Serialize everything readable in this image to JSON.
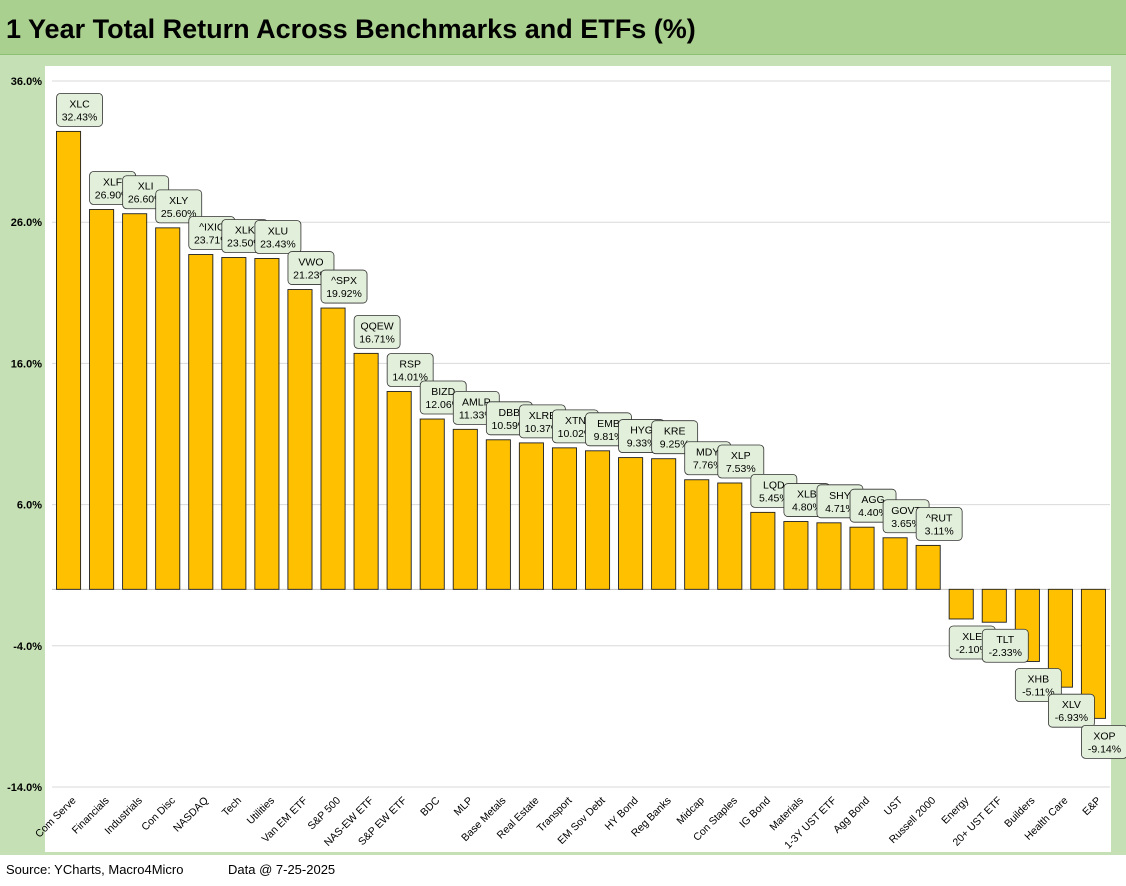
{
  "title": "1 Year Total Return Across Benchmarks and ETFs (%)",
  "footer": {
    "source": "Source: YCharts, Macro4Micro",
    "date": "Data @ 7-25-2025"
  },
  "colors": {
    "bar": "#ffc000",
    "frame": "#c5e0b4",
    "title_bar": "#a9d08e",
    "label_box": "#e2efda"
  },
  "chart_data": {
    "type": "bar",
    "title": "1 Year Total Return Across Benchmarks and ETFs (%)",
    "xlabel": "",
    "ylabel": "",
    "ylim": [
      -14,
      36
    ],
    "yticks": [
      -14,
      -4,
      6,
      16,
      26,
      36
    ],
    "ytick_labels": [
      "-14.0%",
      "-4.0%",
      "6.0%",
      "16.0%",
      "26.0%",
      "36.0%"
    ],
    "grid": true,
    "categories": [
      "Com Serve",
      "Financials",
      "Industrials",
      "Con Disc",
      "NASDAQ",
      "Tech",
      "Utilities",
      "Van EM ETF",
      "S&P 500",
      "NAS-EW ETF",
      "S&P EW ETF",
      "BDC",
      "MLP",
      "Base Metals",
      "Real Estate",
      "Transport",
      "EM Sov Debt",
      "HY Bond",
      "Reg Banks",
      "Midcap",
      "Con Staples",
      "IG Bond",
      "Materials",
      "1-3Y UST ETF",
      "Agg Bond",
      "UST",
      "Russell 2000",
      "Energy",
      "20+ UST ETF",
      "Builders",
      "Health Care",
      "E&P"
    ],
    "tickers": [
      "XLC",
      "XLF",
      "XLI",
      "XLY",
      "^IXIC",
      "XLK",
      "XLU",
      "VWO",
      "^SPX",
      "QQEW",
      "RSP",
      "BIZD",
      "AMLP",
      "DBB",
      "XLRE",
      "XTN",
      "EMB",
      "HYG",
      "KRE",
      "MDY",
      "XLP",
      "LQD",
      "XLB",
      "SHY",
      "AGG",
      "GOVT",
      "^RUT",
      "XLE",
      "TLT",
      "XHB",
      "XLV",
      "XOP"
    ],
    "values": [
      32.43,
      26.9,
      26.6,
      25.6,
      23.71,
      23.5,
      23.43,
      21.23,
      19.92,
      16.71,
      14.01,
      12.06,
      11.33,
      10.59,
      10.37,
      10.02,
      9.81,
      9.33,
      9.25,
      7.76,
      7.53,
      5.45,
      4.8,
      4.71,
      4.4,
      3.65,
      3.11,
      -2.1,
      -2.33,
      -5.11,
      -6.93,
      -9.14
    ],
    "value_labels": [
      "32.43%",
      "26.90%",
      "26.60%",
      "25.60%",
      "23.71%",
      "23.50%",
      "23.43%",
      "21.23%",
      "19.92%",
      "16.71%",
      "14.01%",
      "12.06%",
      "11.33%",
      "10.59%",
      "10.37%",
      "10.02%",
      "9.81%",
      "9.33%",
      "9.25%",
      "7.76%",
      "7.53%",
      "5.45%",
      "4.80%",
      "4.71%",
      "4.40%",
      "3.65%",
      "3.11%",
      "-2.10%",
      "-2.33%",
      "-5.11%",
      "-6.93%",
      "-9.14%"
    ]
  }
}
